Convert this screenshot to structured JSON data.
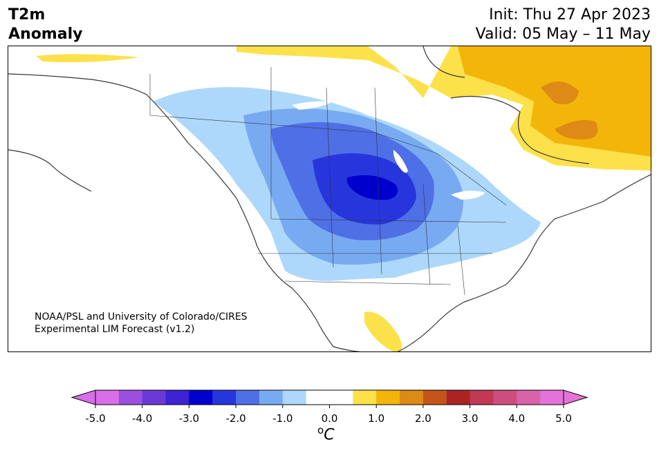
{
  "header": {
    "title_line1": "T2m",
    "title_line2": "Anomaly",
    "init": "Init: Thu 27 Apr 2023",
    "valid": "Valid: 05 May – 11 May"
  },
  "map": {
    "credit_line1": "NOAA/PSL and University of Colorado/CIRES",
    "credit_line2": "Experimental LIM Forecast (v1.2)"
  },
  "colorbar": {
    "unit_base": "C",
    "unit_sup": "o",
    "ticks": [
      "-5.0",
      "-4.0",
      "-3.0",
      "-2.0",
      "-1.0",
      "0.0",
      "1.0",
      "2.0",
      "3.0",
      "4.0",
      "5.0"
    ],
    "tick_values": [
      -5,
      -4,
      -3,
      -2,
      -1,
      0,
      1,
      2,
      3,
      4,
      5
    ],
    "colors": [
      "#d86ee8",
      "#9b4fdf",
      "#6a39d8",
      "#3d23d2",
      "#0000cd",
      "#2636dc",
      "#4f6fe6",
      "#78aaf2",
      "#add8fb",
      "#ffffff",
      "#ffffff",
      "#fde14b",
      "#f3b50a",
      "#dd8a16",
      "#c5541a",
      "#aa2424",
      "#c03a55",
      "#cd4e7d",
      "#d962a8",
      "#e472d8"
    ],
    "under_color": "#d86ee8",
    "over_color": "#e472d8"
  }
}
